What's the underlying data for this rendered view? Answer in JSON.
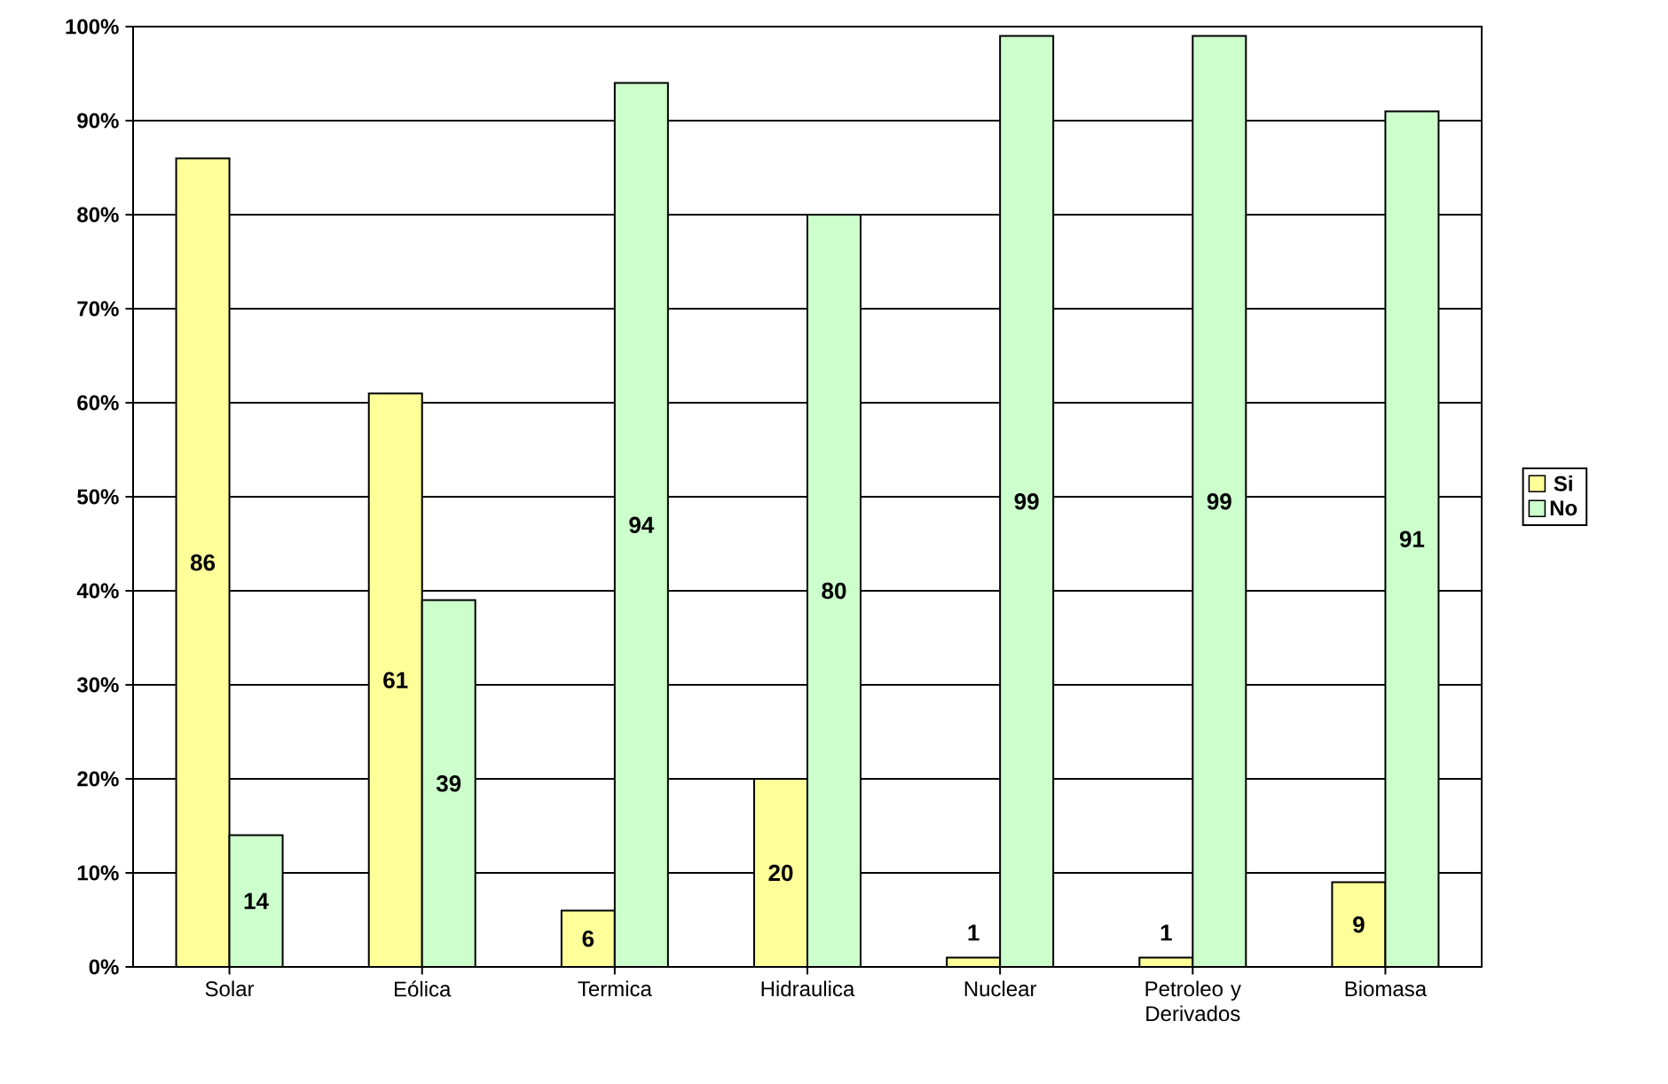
{
  "chart_data": {
    "type": "bar",
    "categories": [
      "Solar",
      "Eólica",
      "Termica",
      "Hidraulica",
      "Nuclear",
      "Petroleo y Derivados",
      "Biomasa"
    ],
    "series": [
      {
        "name": "Si",
        "color": "#ffff99",
        "values": [
          86,
          61,
          6,
          20,
          1,
          1,
          9
        ]
      },
      {
        "name": "No",
        "color": "#ccffcc",
        "values": [
          14,
          39,
          94,
          80,
          99,
          99,
          91
        ]
      }
    ],
    "ylim": [
      0,
      100
    ],
    "yticks": [
      {
        "value": 0,
        "label": "0%"
      },
      {
        "value": 10,
        "label": "10%"
      },
      {
        "value": 20,
        "label": "20%"
      },
      {
        "value": 30,
        "label": "30%"
      },
      {
        "value": 40,
        "label": "40%"
      },
      {
        "value": 50,
        "label": "50%"
      },
      {
        "value": 60,
        "label": "60%"
      },
      {
        "value": 70,
        "label": "70%"
      },
      {
        "value": 80,
        "label": "80%"
      },
      {
        "value": 90,
        "label": "90%"
      },
      {
        "value": 100,
        "label": "100%"
      }
    ],
    "grid": "y",
    "legend": "right",
    "data_labels": true
  }
}
